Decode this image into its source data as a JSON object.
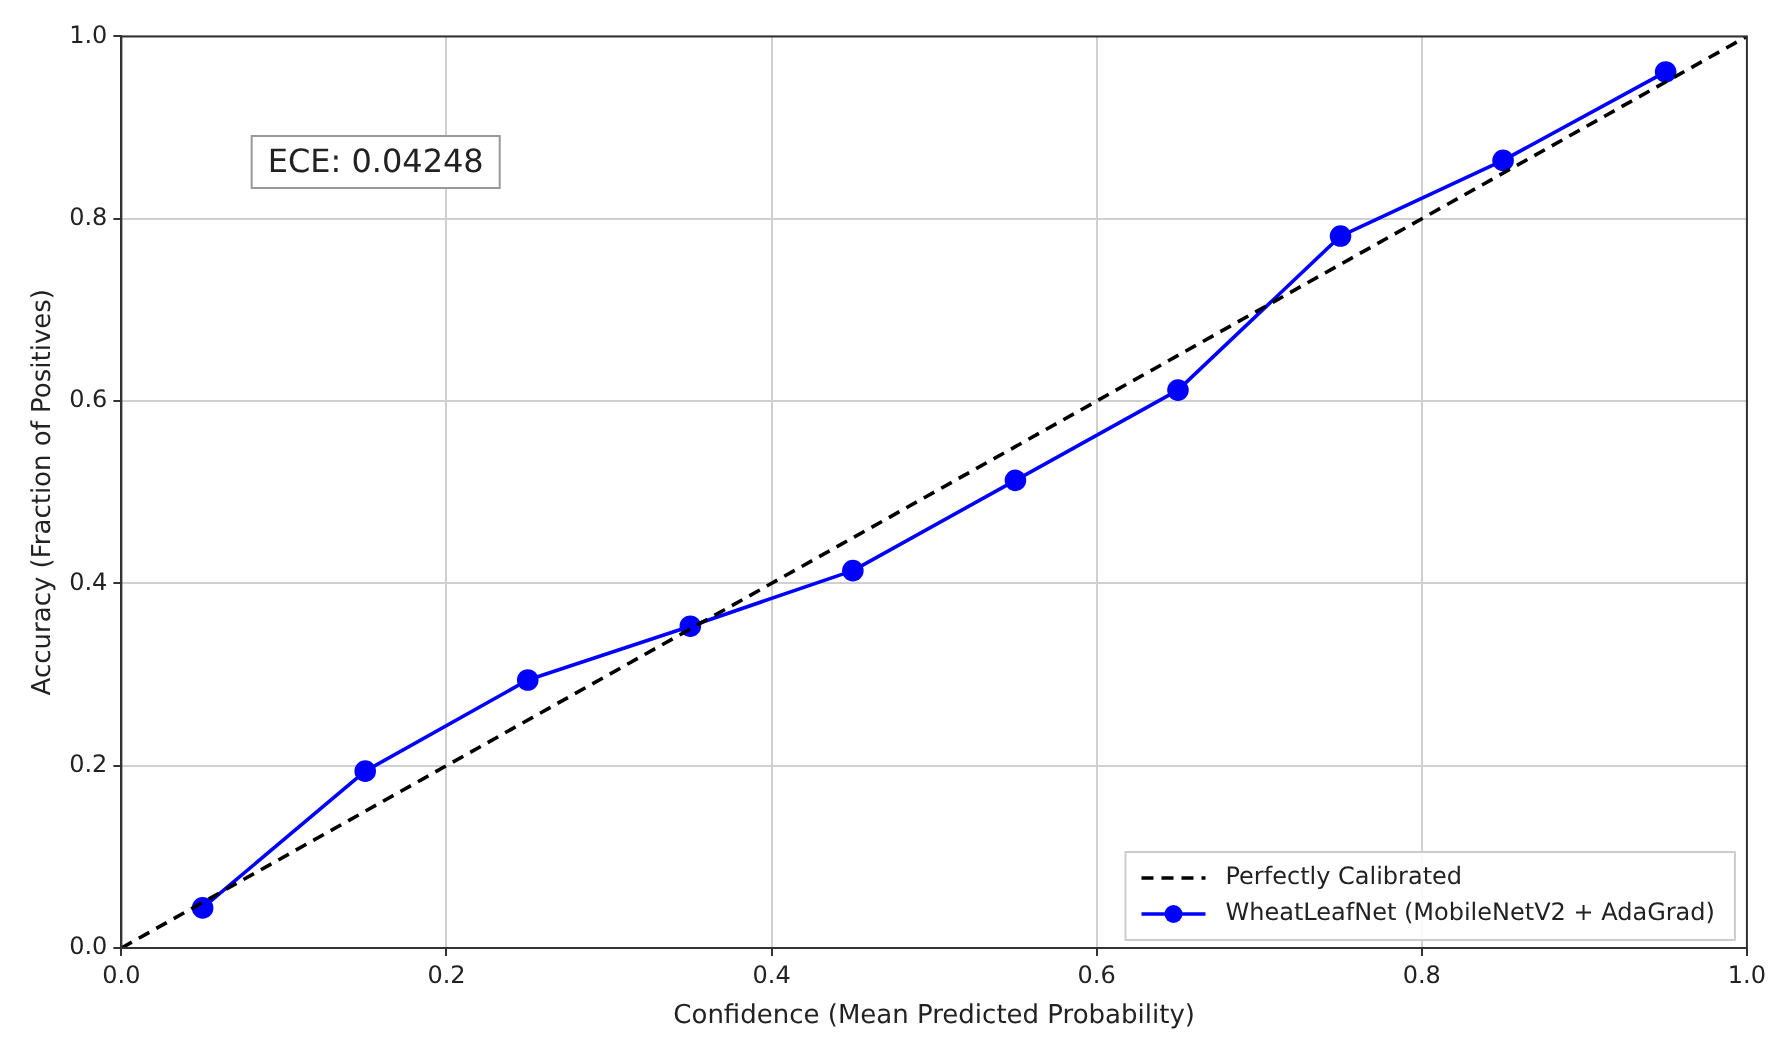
{
  "chart_data": {
    "type": "line",
    "xlabel": "Confidence (Mean Predicted Probability)",
    "ylabel": "Accuracy (Fraction of Positives)",
    "xlim": [
      0,
      1
    ],
    "ylim": [
      0,
      1
    ],
    "xticks": [
      {
        "value": 0,
        "label": "0.0"
      },
      0.2,
      0.4,
      0.6,
      0.8,
      {
        "value": 1,
        "label": "1.0"
      }
    ],
    "yticks": [
      {
        "value": 0,
        "label": "0.0"
      },
      0.2,
      0.4,
      0.6,
      0.8,
      {
        "value": 1,
        "label": "1.0"
      }
    ],
    "series": [
      {
        "name": "Perfectly Calibrated",
        "color": "#000000",
        "x": [
          0,
          1
        ],
        "values": [
          0,
          1
        ],
        "line_style": "dashed",
        "marker": "none"
      },
      {
        "name": "WheatLeafNet (MobileNetV2 + AdaGrad)",
        "color": "#0000ff",
        "x": [
          0.05,
          0.15,
          0.25,
          0.35,
          0.45,
          0.55,
          0.65,
          0.75,
          0.85,
          0.95
        ],
        "values": [
          0.044,
          0.194,
          0.294,
          0.353,
          0.414,
          0.513,
          0.612,
          0.781,
          0.864,
          0.961
        ],
        "line_style": "solid",
        "marker": "circle"
      }
    ],
    "annotations": [
      "ECE: 0.04248"
    ],
    "grid": true,
    "legend": "bottom right"
  }
}
